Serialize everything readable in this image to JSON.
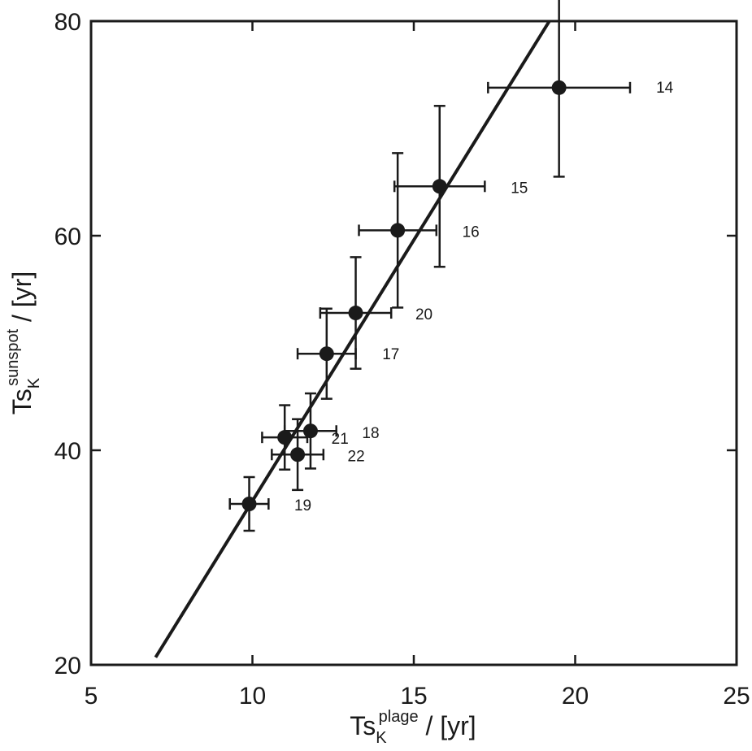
{
  "chart_data": {
    "type": "scatter",
    "title": "",
    "xlabel": {
      "main": "Ts",
      "sub": "K",
      "sup": "plage",
      "unit": " / [yr]"
    },
    "ylabel": {
      "main": "Ts",
      "sub": "K",
      "sup": "sunspot",
      "unit": " / [yr]"
    },
    "xlim": [
      5,
      25
    ],
    "ylim": [
      20,
      80
    ],
    "xticks": [
      5,
      10,
      15,
      20,
      25
    ],
    "yticks": [
      20,
      40,
      60,
      80
    ],
    "grid": false,
    "points": [
      {
        "label": "14",
        "x": 19.5,
        "y": 73.8,
        "xerr": [
          2.2,
          2.2
        ],
        "yerr": [
          8.3,
          8.3
        ]
      },
      {
        "label": "15",
        "x": 15.8,
        "y": 64.6,
        "xerr": [
          1.4,
          1.4
        ],
        "yerr": [
          7.5,
          7.5
        ]
      },
      {
        "label": "16",
        "x": 14.5,
        "y": 60.5,
        "xerr": [
          1.2,
          1.2
        ],
        "yerr": [
          7.2,
          7.2
        ]
      },
      {
        "label": "20",
        "x": 13.2,
        "y": 52.8,
        "xerr": [
          1.1,
          1.1
        ],
        "yerr": [
          5.2,
          5.2
        ]
      },
      {
        "label": "17",
        "x": 12.3,
        "y": 49.0,
        "xerr": [
          0.9,
          0.9
        ],
        "yerr": [
          4.2,
          4.2
        ]
      },
      {
        "label": "18",
        "x": 11.8,
        "y": 41.8,
        "xerr": [
          0.8,
          0.8
        ],
        "yerr": [
          3.5,
          3.5
        ]
      },
      {
        "label": "21",
        "x": 11.0,
        "y": 41.2,
        "xerr": [
          0.7,
          0.7
        ],
        "yerr": [
          3.0,
          3.0
        ]
      },
      {
        "label": "22",
        "x": 11.4,
        "y": 39.6,
        "xerr": [
          0.8,
          0.8
        ],
        "yerr": [
          3.3,
          3.3
        ]
      },
      {
        "label": "19",
        "x": 9.9,
        "y": 35.0,
        "xerr": [
          0.6,
          0.6
        ],
        "yerr": [
          2.5,
          2.5
        ]
      }
    ],
    "fit_line": {
      "x": [
        7.0,
        19.2
      ],
      "y": [
        20.7,
        80.0
      ]
    }
  }
}
